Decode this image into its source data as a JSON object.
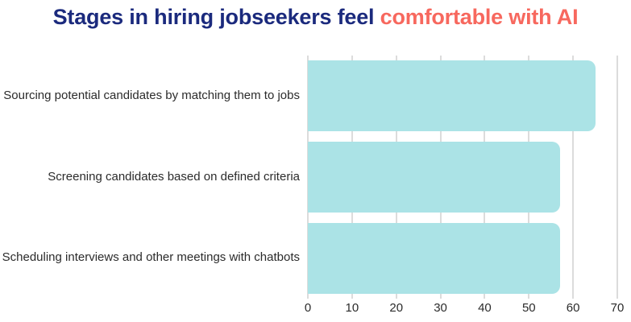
{
  "title": {
    "part1": "Stages in hiring jobseekers feel ",
    "part2": "comfortable with AI"
  },
  "colors": {
    "title_primary": "#1B2A7D",
    "title_accent": "#F7685E",
    "bar": "#ABE3E6",
    "gridline": "#DCDCDC",
    "text": "#2B2B2B",
    "background": "#FFFFFF"
  },
  "chart_data": {
    "type": "bar",
    "orientation": "horizontal",
    "title": "Stages in hiring jobseekers feel comfortable with AI",
    "categories": [
      "Sourcing potential candidates by matching them to jobs",
      "Screening candidates based on defined criteria",
      "Scheduling interviews and other meetings with chatbots"
    ],
    "values": [
      65,
      57,
      57
    ],
    "xlabel": "",
    "ylabel": "",
    "xlim": [
      0,
      70
    ],
    "xticks": [
      0,
      10,
      20,
      30,
      40,
      50,
      60,
      70
    ],
    "grid": "vertical",
    "legend": false
  }
}
